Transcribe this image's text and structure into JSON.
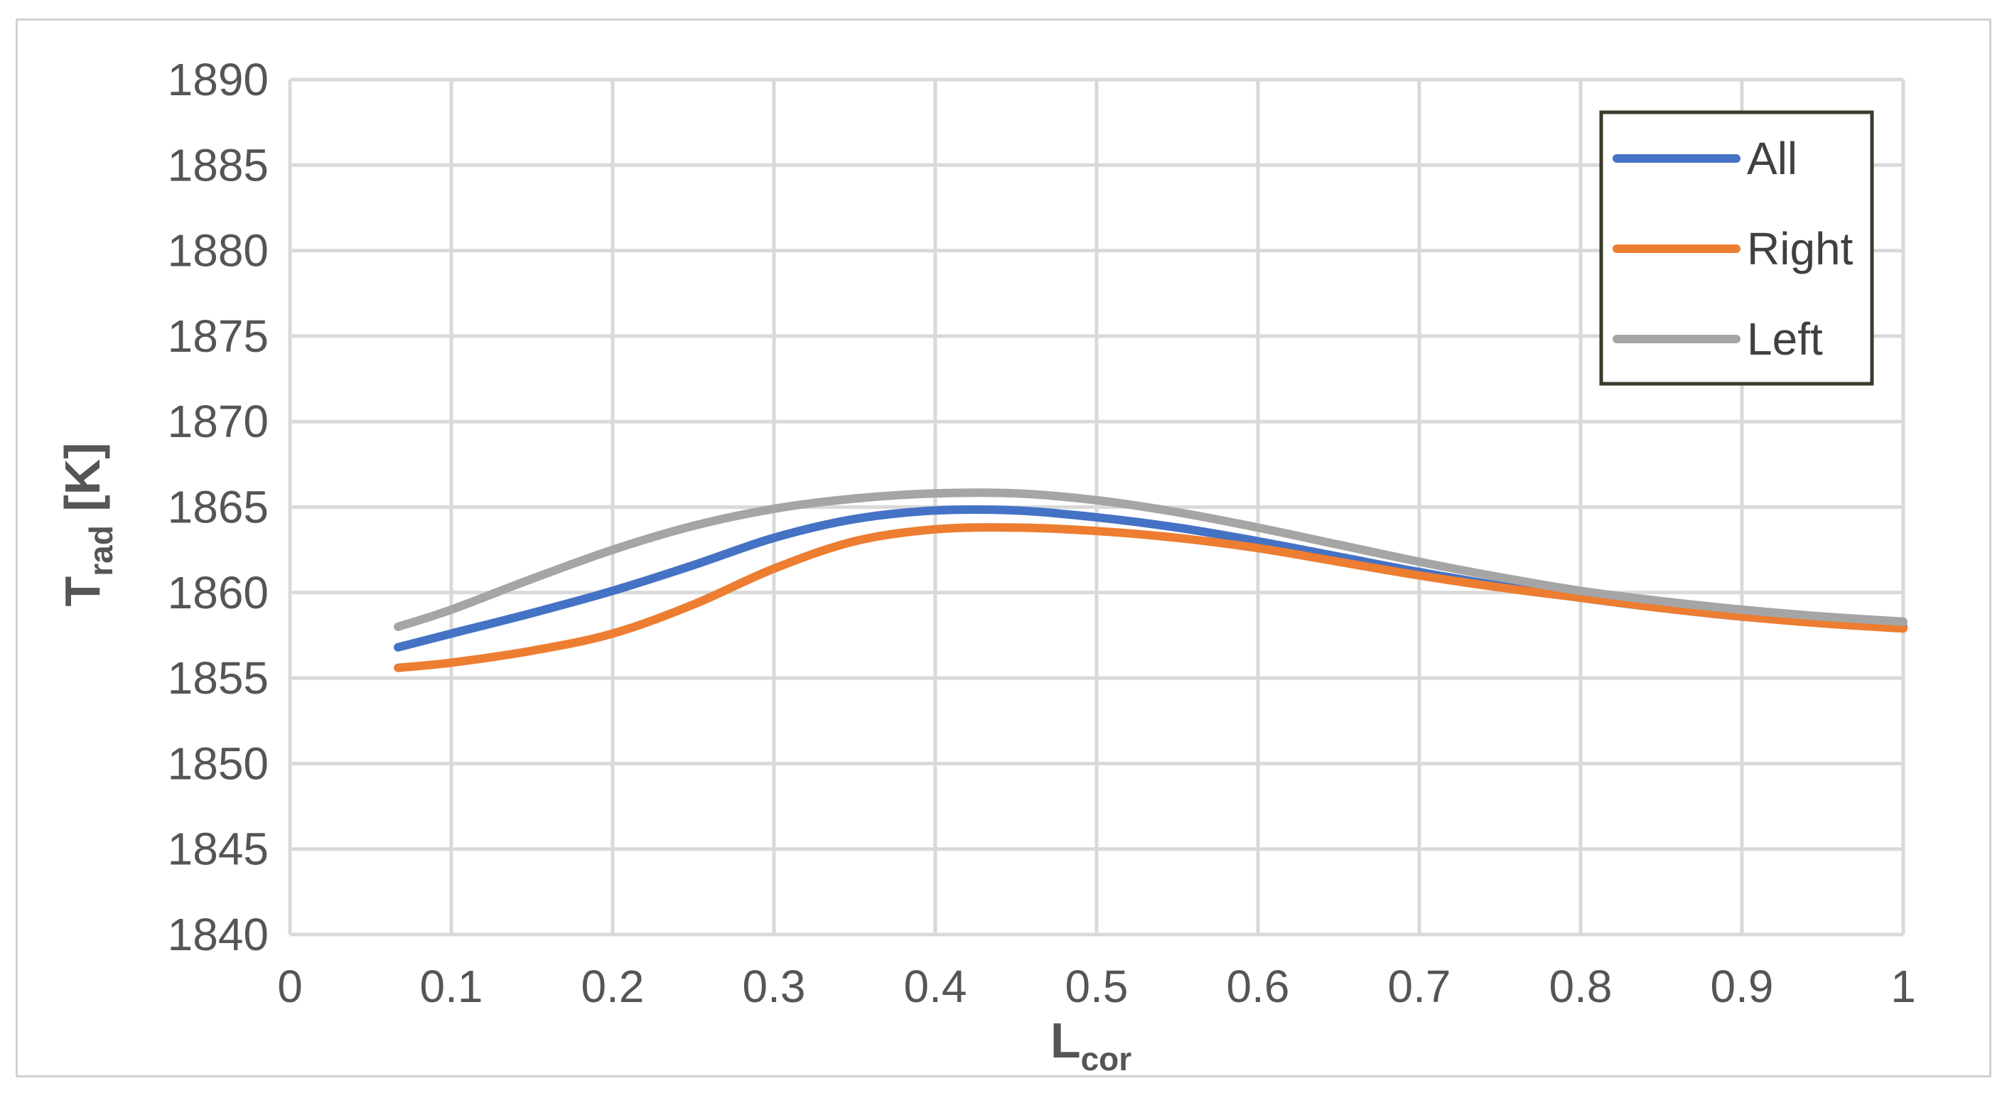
{
  "chart_data": {
    "type": "line",
    "title": "",
    "xlabel": {
      "main": "L",
      "sub": "cor"
    },
    "ylabel": {
      "main": "T",
      "sub": "rad",
      "suffix": " [K]"
    },
    "xlim": [
      0,
      1
    ],
    "ylim": [
      1840,
      1890
    ],
    "x_ticks": [
      "0",
      "0.1",
      "0.2",
      "0.3",
      "0.4",
      "0.5",
      "0.6",
      "0.7",
      "0.8",
      "0.9",
      "1"
    ],
    "y_ticks": [
      "1840",
      "1845",
      "1850",
      "1855",
      "1860",
      "1865",
      "1870",
      "1875",
      "1880",
      "1885",
      "1890"
    ],
    "grid": true,
    "legend_position": "top-right",
    "series": [
      {
        "name": "All",
        "color": "#4472C4",
        "x": [
          0.067,
          0.1,
          0.15,
          0.2,
          0.25,
          0.3,
          0.35,
          0.4,
          0.45,
          0.5,
          0.55,
          0.6,
          0.65,
          0.7,
          0.75,
          0.8,
          0.85,
          0.9,
          0.95,
          1.0
        ],
        "y": [
          1856.8,
          1857.6,
          1858.8,
          1860.1,
          1861.6,
          1863.2,
          1864.3,
          1864.8,
          1864.8,
          1864.4,
          1863.8,
          1863.0,
          1862.1,
          1861.2,
          1860.4,
          1859.7,
          1859.1,
          1858.6,
          1858.3,
          1858.0
        ]
      },
      {
        "name": "Right",
        "color": "#ED7D31",
        "x": [
          0.067,
          0.1,
          0.15,
          0.2,
          0.25,
          0.3,
          0.35,
          0.4,
          0.45,
          0.5,
          0.55,
          0.6,
          0.65,
          0.7,
          0.75,
          0.8,
          0.85,
          0.9,
          0.95,
          1.0
        ],
        "y": [
          1855.6,
          1855.9,
          1856.6,
          1857.6,
          1859.3,
          1861.4,
          1863.0,
          1863.7,
          1863.8,
          1863.6,
          1863.2,
          1862.6,
          1861.8,
          1861.0,
          1860.3,
          1859.7,
          1859.1,
          1858.6,
          1858.2,
          1857.9
        ]
      },
      {
        "name": "Left",
        "color": "#A5A5A5",
        "x": [
          0.067,
          0.1,
          0.15,
          0.2,
          0.25,
          0.3,
          0.35,
          0.4,
          0.45,
          0.5,
          0.55,
          0.6,
          0.65,
          0.7,
          0.75,
          0.8,
          0.85,
          0.9,
          0.95,
          1.0
        ],
        "y": [
          1858.0,
          1859.0,
          1860.8,
          1862.5,
          1863.9,
          1864.9,
          1865.5,
          1865.8,
          1865.8,
          1865.4,
          1864.7,
          1863.8,
          1862.8,
          1861.8,
          1860.9,
          1860.1,
          1859.5,
          1859.0,
          1858.6,
          1858.3
        ]
      }
    ]
  }
}
